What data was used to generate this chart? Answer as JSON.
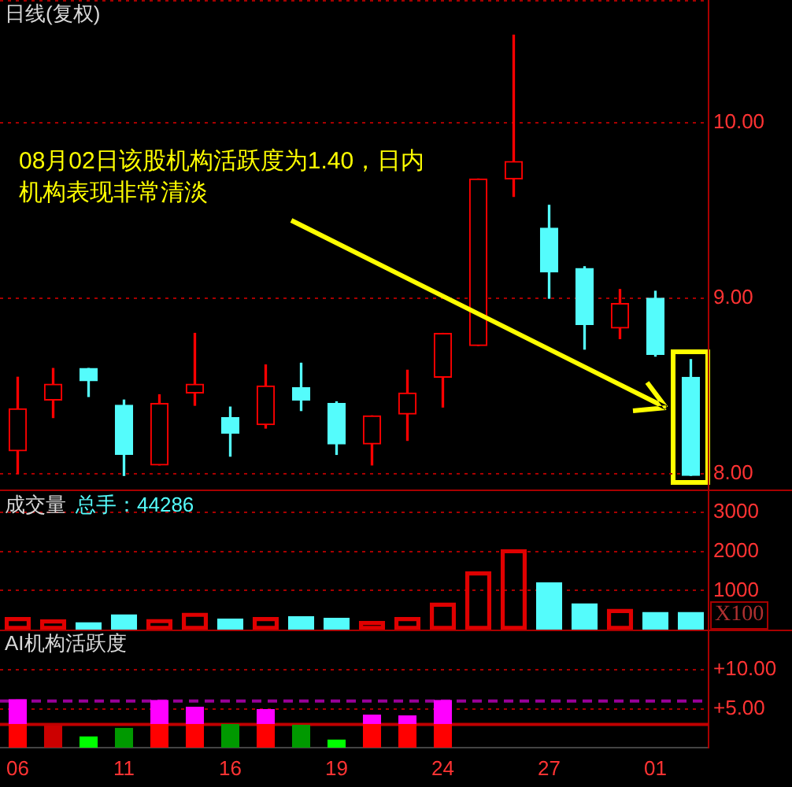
{
  "chart_data": [
    {
      "type": "candlestick",
      "title": "日线(复权)",
      "annotations": [
        "08月02日该股机构活跃度为1.40，日内机构表现非常清淡"
      ],
      "categories": [
        "06",
        null,
        null,
        "11",
        null,
        null,
        "16",
        null,
        null,
        "19",
        null,
        null,
        "24",
        null,
        null,
        "27",
        null,
        null,
        "01",
        null
      ],
      "ohlc": [
        [
          8.13,
          8.55,
          8.0,
          8.37
        ],
        [
          8.42,
          8.6,
          8.32,
          8.51
        ],
        [
          8.6,
          8.6,
          8.44,
          8.53
        ],
        [
          8.39,
          8.42,
          7.99,
          8.11
        ],
        [
          8.05,
          8.45,
          8.05,
          8.4
        ],
        [
          8.46,
          8.8,
          8.39,
          8.51
        ],
        [
          8.32,
          8.38,
          8.1,
          8.23
        ],
        [
          8.28,
          8.62,
          8.26,
          8.5
        ],
        [
          8.49,
          8.63,
          8.36,
          8.42
        ],
        [
          8.4,
          8.41,
          8.11,
          8.17
        ],
        [
          8.17,
          8.33,
          8.05,
          8.33
        ],
        [
          8.34,
          8.59,
          8.19,
          8.46
        ],
        [
          8.55,
          8.8,
          8.38,
          8.8
        ],
        [
          8.73,
          9.68,
          8.73,
          9.68
        ],
        [
          9.68,
          10.5,
          9.58,
          9.78
        ],
        [
          9.4,
          9.53,
          9.0,
          9.15
        ],
        [
          9.17,
          9.18,
          8.71,
          8.85
        ],
        [
          8.83,
          9.05,
          8.77,
          8.97
        ],
        [
          9.0,
          9.04,
          8.67,
          8.68
        ],
        [
          8.55,
          8.65,
          7.99,
          7.99
        ]
      ],
      "colors": [
        "#ff0000",
        "#ff0000",
        "#54fcfc",
        "#54fcfc",
        "#ff0000",
        "#ff0000",
        "#54fcfc",
        "#ff0000",
        "#54fcfc",
        "#54fcfc",
        "#ff0000",
        "#ff0000",
        "#ff0000",
        "#ff0000",
        "#ff0000",
        "#54fcfc",
        "#54fcfc",
        "#ff0000",
        "#54fcfc",
        "#54fcfc"
      ],
      "ylim": [
        7.91,
        10.7
      ],
      "yticks": [
        {
          "value": 8,
          "label": "8.00"
        },
        {
          "value": 9,
          "label": "9.00"
        },
        {
          "value": 10,
          "label": "10.00"
        }
      ],
      "grid": "y",
      "tick_labels": "y"
    },
    {
      "type": "bar",
      "title": "成交量",
      "subtitle": "总手：44286",
      "ylabel": "X100",
      "categories": [
        "06",
        null,
        null,
        "11",
        null,
        null,
        "16",
        null,
        null,
        "19",
        null,
        null,
        "24",
        null,
        null,
        "27",
        null,
        null,
        "01",
        null
      ],
      "values": [
        310,
        250,
        180,
        380,
        260,
        420,
        270,
        310,
        330,
        290,
        210,
        310,
        680,
        1480,
        2050,
        1200,
        660,
        520,
        440,
        442.86
      ],
      "colors": [
        "#e00000",
        "#e00000",
        "#54fcfc",
        "#54fcfc",
        "#e00000",
        "#e00000",
        "#54fcfc",
        "#e00000",
        "#54fcfc",
        "#54fcfc",
        "#e00000",
        "#e00000",
        "#e00000",
        "#e00000",
        "#e00000",
        "#54fcfc",
        "#54fcfc",
        "#e00000",
        "#54fcfc",
        "#54fcfc"
      ],
      "ylim": [
        0,
        3590
      ],
      "yticks": [
        1000,
        2000,
        3000
      ],
      "grid": "y",
      "tick_labels": "y"
    },
    {
      "type": "bar",
      "title": "AI机构活跃度",
      "stacked": true,
      "categories": [
        "06",
        null,
        null,
        "11",
        null,
        null,
        "16",
        null,
        null,
        "19",
        null,
        null,
        "24",
        null,
        null,
        "27",
        null,
        null,
        "01",
        null
      ],
      "series": [
        {
          "colors": [
            "#ff0000",
            "#cc0000",
            "#00ff00",
            "#009900",
            "#ff0000",
            "#ff0000",
            "#009900",
            "#ff0000",
            "#009900",
            "#00ff00",
            "#ff0000",
            "#ff0000",
            "#ff0000",
            null,
            null,
            null,
            null,
            null,
            null,
            null
          ],
          "values": [
            3.0,
            2.8,
            1.4,
            2.5,
            3.0,
            3.0,
            3.0,
            3.0,
            2.9,
            1.0,
            3.0,
            3.0,
            3.0,
            null,
            null,
            null,
            null,
            null,
            null,
            null
          ]
        },
        {
          "color": "#ff00ff",
          "values": [
            3.2,
            null,
            null,
            null,
            3.1,
            2.2,
            null,
            1.9,
            null,
            null,
            1.2,
            1.1,
            3.1,
            null,
            null,
            null,
            null,
            null,
            null,
            null
          ]
        }
      ],
      "ylim": [
        0,
        15.2
      ],
      "yticks": [
        {
          "value": 5,
          "label": "+5.00"
        },
        {
          "value": 10,
          "label": "+10.00"
        }
      ],
      "grid": "y",
      "ref_lines": [
        {
          "axis": "y",
          "value": 3,
          "color": "#c00000"
        },
        {
          "axis": "y",
          "value": 6,
          "color": "#990099",
          "line_style": "dashed"
        }
      ]
    }
  ]
}
